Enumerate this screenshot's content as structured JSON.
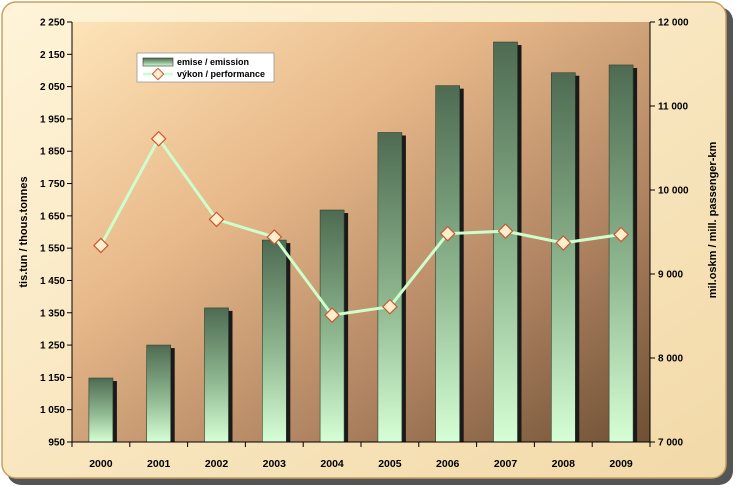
{
  "chart_data": {
    "type": "bar",
    "categories": [
      "2000",
      "2001",
      "2002",
      "2003",
      "2004",
      "2005",
      "2006",
      "2007",
      "2008",
      "2009"
    ],
    "series": [
      {
        "name": "emise / emission",
        "kind": "bar",
        "axis": "left",
        "values": [
          1148,
          1250,
          1365,
          1575,
          1668,
          1908,
          2053,
          2188,
          2093,
          2117
        ]
      },
      {
        "name": "výkon / performance",
        "kind": "line",
        "axis": "right",
        "values": [
          9340,
          10610,
          9650,
          9440,
          8510,
          8610,
          9480,
          9510,
          9370,
          9470
        ]
      }
    ],
    "ylabel": "tis.tun / thous.tonnes",
    "y2label": "mil.oskm / mill. passenger-km",
    "ylim": [
      950,
      2250
    ],
    "y2lim": [
      7000,
      12000
    ],
    "y_ticks": [
      "950",
      "1 050",
      "1 150",
      "1 250",
      "1 350",
      "1 450",
      "1 550",
      "1 650",
      "1 750",
      "1 850",
      "1 950",
      "2 050",
      "2 150",
      "2 250"
    ],
    "y2_ticks": [
      "7 000",
      "8 000",
      "9 000",
      "10 000",
      "11 000",
      "12 000"
    ],
    "legend_position": "top-left",
    "grid": false,
    "colors": {
      "bar_top": "#4e6b52",
      "bar_bottom": "#ccffcc",
      "bar_shadow": "#1a1a1a",
      "line": "#ccffcc",
      "marker_fill": "#ffeecc",
      "marker_stroke": "#cc5533",
      "bg_light": "#fde0b0",
      "bg_dark": "#7a5a3a",
      "frame_border": "#c8a060"
    }
  }
}
